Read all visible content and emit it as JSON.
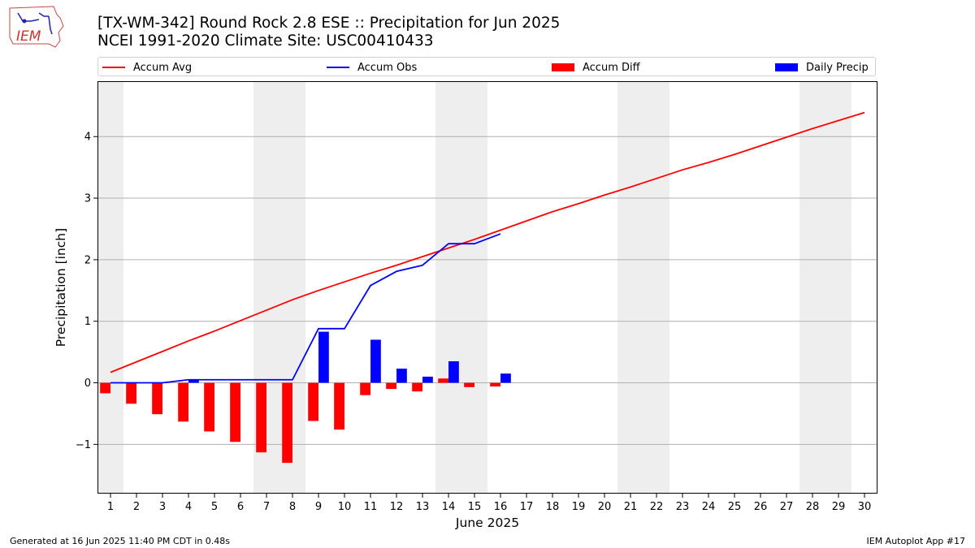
{
  "logo": {
    "text": "IEM"
  },
  "title": {
    "line1": "[TX-WM-342] Round Rock 2.8 ESE :: Precipitation for Jun 2025",
    "line2": "NCEI 1991-2020 Climate Site: USC00410433"
  },
  "legend": [
    {
      "label": "Accum Avg",
      "kind": "line",
      "color": "#ff0000"
    },
    {
      "label": "Accum Obs",
      "kind": "line",
      "color": "#0000ff"
    },
    {
      "label": "Accum Diff",
      "kind": "box",
      "color": "#ff0000"
    },
    {
      "label": "Daily Precip",
      "kind": "box",
      "color": "#0000ff"
    }
  ],
  "footer": {
    "left": "Generated at 16 Jun 2025 11:40 PM CDT in 0.48s",
    "right": "IEM Autoplot App #17"
  },
  "chart_data": {
    "type": "bar",
    "xlabel": "June 2025",
    "ylabel": "Precipitation [inch]",
    "xlim": [
      0.5,
      30.5
    ],
    "ylim": [
      -1.8,
      4.9
    ],
    "y_ticks": [
      -1,
      0,
      1,
      2,
      3,
      4
    ],
    "y_tick_labels": [
      "−1",
      "0",
      "1",
      "2",
      "3",
      "4"
    ],
    "x_ticks": [
      1,
      2,
      3,
      4,
      5,
      6,
      7,
      8,
      9,
      10,
      11,
      12,
      13,
      14,
      15,
      16,
      17,
      18,
      19,
      20,
      21,
      22,
      23,
      24,
      25,
      26,
      27,
      28,
      29,
      30
    ],
    "grid": "horizontal",
    "weekend_shading": [
      1,
      7,
      8,
      14,
      15,
      21,
      22,
      28,
      29
    ],
    "weekend_color": "#eeeeee",
    "series": [
      {
        "name": "Accum Avg",
        "kind": "line",
        "color": "#ff0000",
        "x": [
          1,
          2,
          3,
          4,
          5,
          6,
          7,
          8,
          9,
          10,
          11,
          12,
          13,
          14,
          15,
          16,
          17,
          18,
          19,
          20,
          21,
          22,
          23,
          24,
          25,
          26,
          27,
          28,
          29,
          30
        ],
        "values": [
          0.17,
          0.34,
          0.51,
          0.68,
          0.84,
          1.01,
          1.18,
          1.35,
          1.5,
          1.64,
          1.78,
          1.91,
          2.05,
          2.19,
          2.33,
          2.48,
          2.63,
          2.78,
          2.91,
          3.05,
          3.18,
          3.32,
          3.46,
          3.58,
          3.71,
          3.85,
          3.99,
          4.13,
          4.26,
          4.39
        ]
      },
      {
        "name": "Accum Obs",
        "kind": "line",
        "color": "#0000ff",
        "x": [
          1,
          2,
          3,
          4,
          5,
          6,
          7,
          8,
          9,
          10,
          11,
          12,
          13,
          14,
          15,
          16
        ],
        "values": [
          0,
          0,
          0,
          0.05,
          0.05,
          0.05,
          0.05,
          0.05,
          0.88,
          0.88,
          1.58,
          1.81,
          1.91,
          2.26,
          2.26,
          2.42
        ]
      },
      {
        "name": "Accum Diff",
        "kind": "bar",
        "color": "#ff0000",
        "offset": -0.2,
        "x": [
          1,
          2,
          3,
          4,
          5,
          6,
          7,
          8,
          9,
          10,
          11,
          12,
          13,
          14,
          15,
          16
        ],
        "values": [
          -0.17,
          -0.34,
          -0.51,
          -0.63,
          -0.79,
          -0.96,
          -1.13,
          -1.3,
          -0.62,
          -0.76,
          -0.2,
          -0.1,
          -0.14,
          0.07,
          -0.07,
          -0.06
        ]
      },
      {
        "name": "Daily Precip",
        "kind": "bar",
        "color": "#0000ff",
        "offset": 0.2,
        "x": [
          1,
          2,
          3,
          4,
          5,
          6,
          7,
          8,
          9,
          10,
          11,
          12,
          13,
          14,
          15,
          16
        ],
        "values": [
          0,
          0,
          0,
          0.05,
          0,
          0,
          0,
          0,
          0.83,
          0,
          0.7,
          0.23,
          0.1,
          0.35,
          0,
          0.15
        ]
      }
    ]
  }
}
